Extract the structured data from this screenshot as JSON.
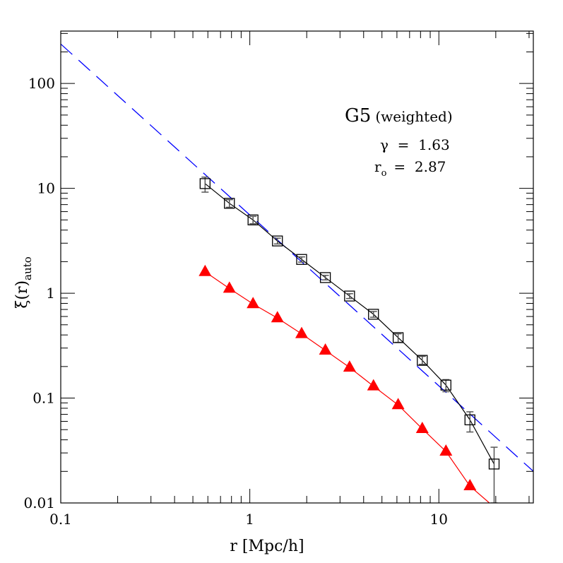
{
  "chart_data": {
    "type": "line",
    "xlabel": "r [Mpc/h]",
    "ylabel": "ξ(r)",
    "ylabel_subscript": "auto",
    "x_scale": "log",
    "y_scale": "log",
    "xlim": [
      0.1,
      31.6
    ],
    "ylim": [
      0.01,
      316
    ],
    "x_ticks": [
      {
        "v": 0.1,
        "label": "0.1"
      },
      {
        "v": 1,
        "label": "1"
      },
      {
        "v": 10,
        "label": "10"
      }
    ],
    "y_ticks": [
      {
        "v": 0.01,
        "label": "0.01"
      },
      {
        "v": 0.1,
        "label": "0.1"
      },
      {
        "v": 1,
        "label": "1"
      },
      {
        "v": 10,
        "label": "10"
      },
      {
        "v": 100,
        "label": "100"
      }
    ],
    "grid": false,
    "annotations": {
      "title": "G5",
      "title_note": "(weighted)",
      "gamma_label": "γ  =  1.63",
      "r0_symbol": "r",
      "r0_sub": "o",
      "r0_value": "=  2.87"
    },
    "series": [
      {
        "marker": "open-square",
        "color": "#000000",
        "x": [
          0.58,
          0.78,
          1.04,
          1.4,
          1.88,
          2.51,
          3.37,
          4.51,
          6.09,
          8.17,
          10.9,
          14.6,
          19.6
        ],
        "y": [
          11.1,
          7.2,
          5.0,
          3.15,
          2.1,
          1.41,
          0.94,
          0.63,
          0.377,
          0.229,
          0.133,
          0.062,
          0.0235
        ],
        "err_low": [
          9.2,
          6.6,
          4.6,
          2.95,
          1.98,
          1.34,
          0.89,
          0.59,
          0.34,
          0.21,
          0.115,
          0.0475,
          0.01
        ],
        "err_high": [
          12.8,
          7.8,
          5.4,
          3.35,
          2.22,
          1.48,
          0.99,
          0.67,
          0.41,
          0.25,
          0.15,
          0.074,
          0.034
        ]
      },
      {
        "marker": "filled-triangle",
        "color": "#ff0000",
        "x": [
          0.58,
          0.78,
          1.04,
          1.4,
          1.88,
          2.51,
          3.37,
          4.51,
          6.09,
          8.17,
          10.9,
          14.6,
          18.5
        ],
        "y": [
          1.6,
          1.11,
          0.79,
          0.58,
          0.41,
          0.285,
          0.196,
          0.13,
          0.086,
          0.051,
          0.031,
          0.0145,
          0.01
        ],
        "marker_count": 12
      },
      {
        "style": "dashed",
        "color": "#0000ff",
        "fit": "power-law",
        "gamma": 1.63,
        "r0": 2.87
      }
    ]
  }
}
